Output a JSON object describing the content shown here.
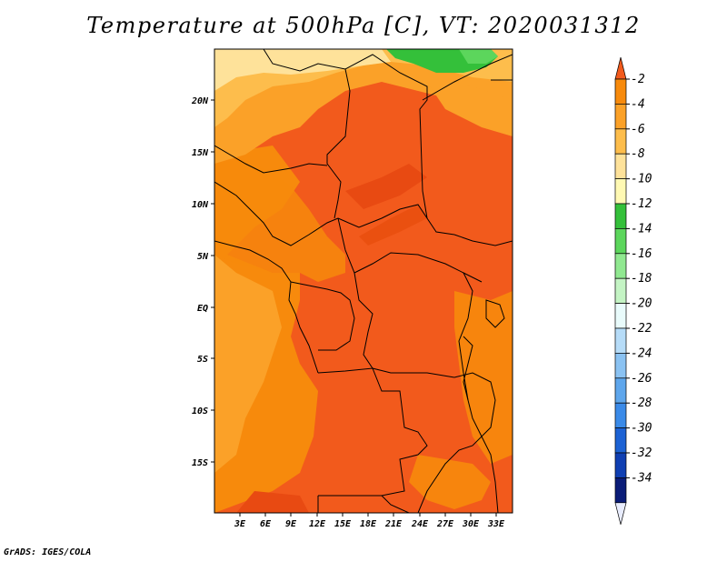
{
  "title": "Temperature at 500hPa [C], VT: 2020031312",
  "credit": "GrADS: IGES/COLA",
  "map": {
    "lat_labels": [
      "20N",
      "15N",
      "10N",
      "5N",
      "EQ",
      "5S",
      "10S",
      "15S"
    ],
    "lon_labels": [
      "3E",
      "6E",
      "9E",
      "12E",
      "15E",
      "18E",
      "21E",
      "24E",
      "27E",
      "30E",
      "33E"
    ]
  },
  "colorbar": {
    "labels": [
      "-2",
      "-4",
      "-6",
      "-8",
      "-10",
      "-12",
      "-14",
      "-16",
      "-18",
      "-20",
      "-22",
      "-24",
      "-26",
      "-28",
      "-30",
      "-32",
      "-34"
    ],
    "colors": [
      "#f25a1c",
      "#f78a0c",
      "#fba128",
      "#fdbd4c",
      "#fee29a",
      "#fff9b3",
      "#34c03a",
      "#5cd65c",
      "#90e890",
      "#c4f4c4",
      "#e9fbfb",
      "#b6dcf8",
      "#8ac2f2",
      "#5ea6ec",
      "#3a8ae8",
      "#1c62d4",
      "#0f3fb2",
      "#0a1c78",
      "#e8ecfd"
    ]
  },
  "colors": {
    "warm_dark": "#f25a1c",
    "warm_mid": "#f78a0c",
    "warm_light": "#fba128",
    "warm_pale": "#fdbd4c",
    "yellow_pale": "#fee29a",
    "green": "#34c03a",
    "green_light": "#5cd65c"
  }
}
